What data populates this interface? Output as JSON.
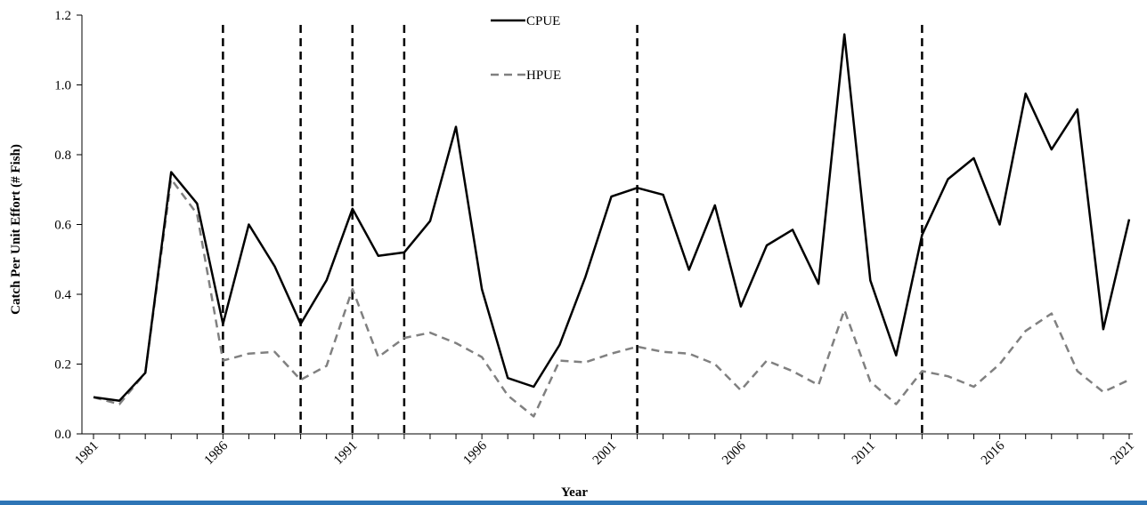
{
  "chart_data": {
    "type": "line",
    "title": "",
    "xlabel": "Year",
    "ylabel": "Catch Per Unit Effort (# Fish)",
    "xlim": [
      1981,
      2021
    ],
    "ylim": [
      0,
      1.2
    ],
    "yticks": [
      "0.0",
      "0.2",
      "0.4",
      "0.6",
      "0.8",
      "1.0",
      "1.2"
    ],
    "xticks": [
      "1981",
      "1986",
      "1991",
      "1996",
      "2001",
      "2006",
      "2011",
      "2016",
      "2021"
    ],
    "grid": false,
    "legend_position": "top-center",
    "x": [
      1981,
      1982,
      1983,
      1984,
      1985,
      1986,
      1987,
      1988,
      1989,
      1990,
      1991,
      1992,
      1993,
      1994,
      1995,
      1996,
      1997,
      1998,
      1999,
      2000,
      2001,
      2002,
      2003,
      2004,
      2005,
      2006,
      2007,
      2008,
      2009,
      2010,
      2011,
      2012,
      2013,
      2014,
      2015,
      2016,
      2017,
      2018,
      2019,
      2020,
      2021
    ],
    "series": [
      {
        "name": "CPUE",
        "color": "#000000",
        "style": "solid",
        "values": [
          0.105,
          0.095,
          0.175,
          0.75,
          0.66,
          0.315,
          0.6,
          0.48,
          0.315,
          0.44,
          0.645,
          0.51,
          0.52,
          0.61,
          0.88,
          0.415,
          0.16,
          0.135,
          0.255,
          0.45,
          0.68,
          0.705,
          0.685,
          0.47,
          0.655,
          0.365,
          0.54,
          0.585,
          0.43,
          1.145,
          0.44,
          0.225,
          0.57,
          0.73,
          0.79,
          0.6,
          0.975,
          0.815,
          0.93,
          0.3,
          0.615
        ]
      },
      {
        "name": "HPUE",
        "color": "#808080",
        "style": "dashed",
        "values": [
          0.105,
          0.085,
          0.175,
          0.73,
          0.63,
          0.21,
          0.23,
          0.235,
          0.155,
          0.195,
          0.415,
          0.22,
          0.275,
          0.29,
          0.26,
          0.22,
          0.11,
          0.05,
          0.21,
          0.205,
          0.23,
          0.25,
          0.235,
          0.23,
          0.2,
          0.125,
          0.21,
          0.18,
          0.14,
          0.355,
          0.15,
          0.085,
          0.18,
          0.165,
          0.135,
          0.2,
          0.295,
          0.345,
          0.18,
          0.12,
          0.155
        ]
      }
    ],
    "vertical_lines_x": [
      1986,
      1989,
      1991,
      1993,
      2002,
      2013
    ]
  }
}
